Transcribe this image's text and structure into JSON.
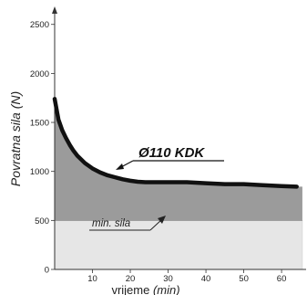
{
  "chart_data": {
    "type": "area",
    "ylabel": "Povratna sila (N)",
    "xlabel_plain": "vrijeme",
    "xlabel_italic": "(min)",
    "xlim": [
      0,
      66
    ],
    "ylim": [
      0,
      2600
    ],
    "x_ticks": [
      10,
      20,
      30,
      40,
      50,
      60
    ],
    "y_ticks": [
      0,
      500,
      1000,
      1500,
      2000,
      2500
    ],
    "series": [
      {
        "name": "Ø110 KDK",
        "x": [
          0,
          1,
          2,
          3,
          4,
          5,
          6,
          8,
          10,
          12,
          14,
          16,
          18,
          20,
          22,
          24,
          26,
          28,
          30,
          35,
          40,
          45,
          50,
          55,
          60,
          64
        ],
        "y": [
          1740,
          1530,
          1420,
          1340,
          1270,
          1210,
          1160,
          1085,
          1030,
          990,
          960,
          940,
          920,
          905,
          895,
          890,
          890,
          890,
          890,
          890,
          880,
          870,
          870,
          860,
          850,
          845
        ]
      }
    ],
    "min_force": {
      "label": "min. sila",
      "value": 500
    },
    "colors": {
      "curve": "#111111",
      "area_above_min": "#9b9b9b",
      "area_below_min": "#e6e6e6",
      "axis": "#333333",
      "text": "#222222"
    }
  }
}
